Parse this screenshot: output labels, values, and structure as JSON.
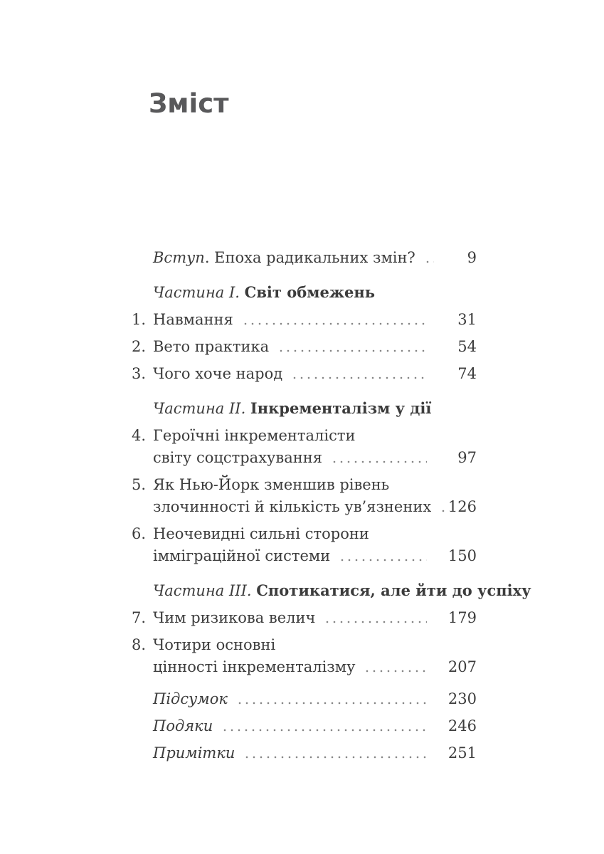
{
  "page_title": "Зміст",
  "toc": {
    "entries": [
      {
        "type": "intro",
        "italic": "Вступ",
        "rest": ". Епоха радикальних змін?",
        "page": "9"
      },
      {
        "type": "part",
        "label": "Частина I.",
        "title": "Світ обмежень"
      },
      {
        "type": "chapter",
        "num": "1.",
        "lines": [
          "Навмання"
        ],
        "page": "31"
      },
      {
        "type": "chapter",
        "num": "2.",
        "lines": [
          "Вето практика"
        ],
        "page": "54"
      },
      {
        "type": "chapter",
        "num": "3.",
        "lines": [
          "Чого хоче народ"
        ],
        "page": "74"
      },
      {
        "type": "part",
        "label": "Частина II.",
        "title": "Інкременталізм у дії"
      },
      {
        "type": "chapter",
        "num": "4.",
        "lines": [
          "Героїчні інкременталісти",
          "світу соцстрахування"
        ],
        "page": "97"
      },
      {
        "type": "chapter",
        "num": "5.",
        "lines": [
          "Як Нью-Йорк зменшив рівень",
          "злочинності й кількість ув’язнених"
        ],
        "page": "126"
      },
      {
        "type": "chapter",
        "num": "6.",
        "lines": [
          "Неочевидні сильні сторони",
          "імміграційної системи"
        ],
        "page": "150"
      },
      {
        "type": "part",
        "label": "Частина III.",
        "title": "Спотикатися, але йти до успіху"
      },
      {
        "type": "chapter",
        "num": "7.",
        "lines": [
          "Чим ризикова велич"
        ],
        "page": "179"
      },
      {
        "type": "chapter",
        "num": "8.",
        "lines": [
          "Чотири основні",
          "цінності інкременталізму"
        ],
        "page": "207"
      },
      {
        "type": "back",
        "italic": "Підсумок",
        "page": "230",
        "first": true
      },
      {
        "type": "back",
        "italic": "Подяки",
        "page": "246"
      },
      {
        "type": "back",
        "italic": "Примітки",
        "page": "251"
      }
    ]
  }
}
